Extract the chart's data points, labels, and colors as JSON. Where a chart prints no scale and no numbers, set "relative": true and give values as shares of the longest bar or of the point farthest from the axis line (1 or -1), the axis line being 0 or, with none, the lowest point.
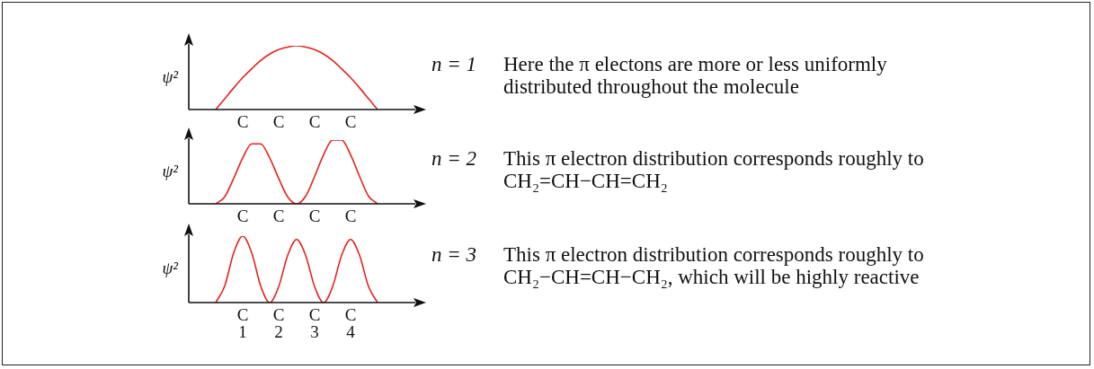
{
  "chart_data": [
    {
      "type": "line",
      "ylabel": "ψ²",
      "relative": true,
      "marker": "none",
      "grid": false,
      "legend": false,
      "categories": [
        null,
        null,
        null,
        null,
        null,
        null,
        "C",
        null,
        null,
        null,
        "C",
        null,
        null,
        null,
        "C",
        null,
        null,
        null,
        "C",
        null,
        null,
        null,
        null,
        null,
        null,
        null
      ],
      "series": [
        {
          "color": "#e3231f",
          "values": [
            null,
            null,
            null,
            0,
            0.17,
            0.34,
            0.5,
            0.64,
            0.77,
            0.87,
            0.94,
            0.98,
            1,
            0.98,
            0.94,
            0.87,
            0.77,
            0.64,
            0.5,
            0.34,
            0.17,
            0,
            null,
            null,
            null,
            null
          ]
        }
      ],
      "annotations": [
        "n = 1",
        "Here the π electons are more or less uniformly distributed throughout the molecule"
      ]
    },
    {
      "type": "line",
      "ylabel": "ψ²",
      "relative": true,
      "marker": "none",
      "grid": false,
      "legend": false,
      "categories": [
        null,
        null,
        null,
        null,
        null,
        null,
        "C",
        null,
        null,
        null,
        "C",
        null,
        null,
        null,
        "C",
        null,
        null,
        null,
        "C",
        null,
        null,
        null,
        null,
        null,
        null,
        null
      ],
      "series": [
        {
          "color": "#e3231f",
          "values": [
            null,
            null,
            null,
            0,
            0.11,
            0.4,
            0.72,
            0.94,
            0.94,
            0.72,
            0.4,
            0.11,
            0,
            0.12,
            0.43,
            0.77,
            1,
            1,
            0.77,
            0.43,
            0.12,
            0,
            null,
            null,
            null,
            null
          ]
        }
      ],
      "annotations": [
        "n = 2",
        "This π electron distribution corresponds roughly to CH₂=CH−CH=CH₂"
      ]
    },
    {
      "type": "line",
      "ylabel": "ψ²",
      "relative": true,
      "marker": "none",
      "grid": false,
      "legend": false,
      "categories": [
        null,
        null,
        null,
        null,
        null,
        null,
        "C\n1",
        null,
        null,
        null,
        "C\n2",
        null,
        null,
        null,
        "C\n3",
        null,
        null,
        null,
        "C\n4",
        null,
        null,
        null,
        null,
        null,
        null,
        null
      ],
      "series": [
        {
          "color": "#e3231f",
          "values": [
            null,
            null,
            null,
            0,
            0.25,
            0.75,
            1,
            0.75,
            0.25,
            0,
            0.24,
            0.71,
            0.95,
            0.71,
            0.24,
            0,
            0.24,
            0.71,
            0.95,
            0.71,
            0.24,
            0,
            null,
            null,
            null,
            null
          ]
        }
      ],
      "annotations": [
        "n = 3",
        "This π electron distribution corresponds roughly to CH₂−CH=CH−CH₂, which will be highly reactive"
      ]
    }
  ]
}
